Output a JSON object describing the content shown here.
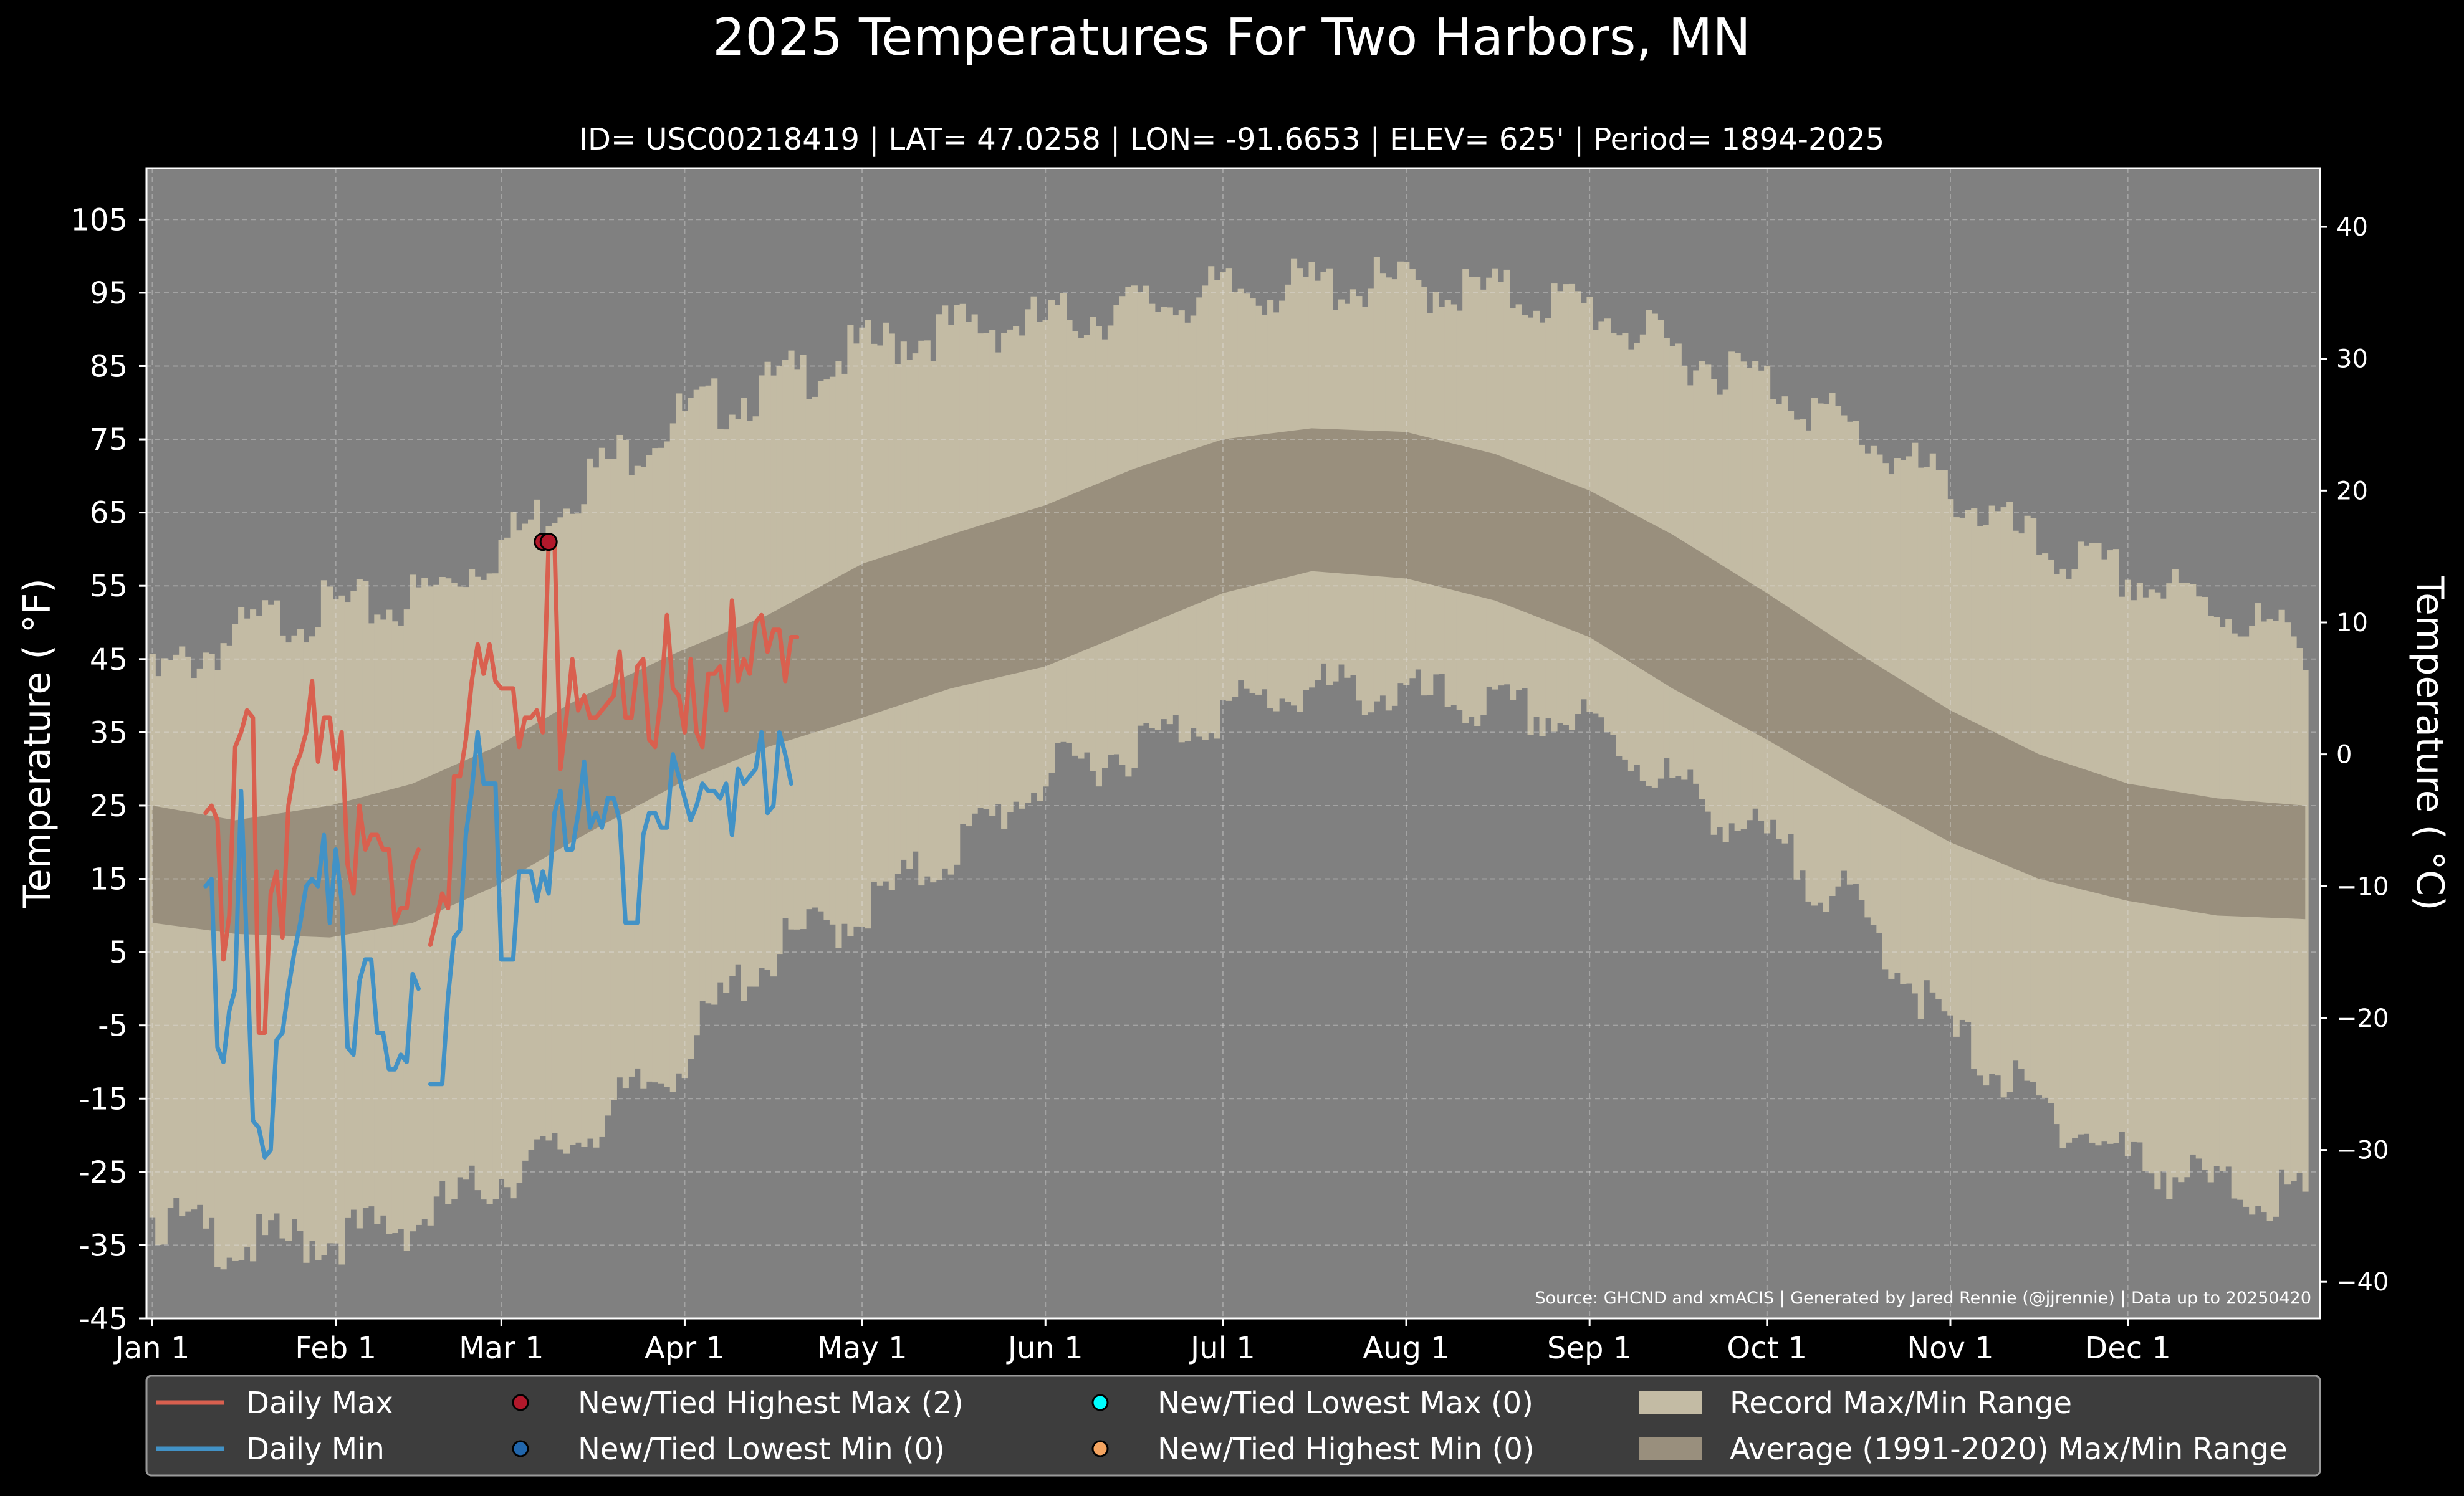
{
  "chart_data": {
    "type": "line",
    "title": "2025 Temperatures For Two Harbors, MN",
    "subtitle": "ID= USC00218419 | LAT= 47.0258 | LON= -91.6653 | ELEV= 625' | Period= 1894-2025",
    "ylabel_left": "Temperature ( °F)",
    "ylabel_right": "Temperature ( °C)",
    "source": "Source: GHCND and xmACIS | Generated by Jared Rennie (@jjrennie) | Data up to 20250420",
    "ylim_f": [
      -45,
      112
    ],
    "y_ticks_f": [
      "105",
      "95",
      "85",
      "75",
      "65",
      "55",
      "45",
      "35",
      "25",
      "15",
      "5",
      "-5",
      "-15",
      "-25",
      "-35",
      "-45"
    ],
    "y_ticks_c": [
      "40",
      "30",
      "20",
      "10",
      "0",
      "−10",
      "−20",
      "−30",
      "−40"
    ],
    "x_ticks": [
      "Jan 1",
      "Feb 1",
      "Mar 1",
      "Apr 1",
      "May 1",
      "Jun 1",
      "Jul 1",
      "Aug 1",
      "Sep 1",
      "Oct 1",
      "Nov 1",
      "Dec 1"
    ],
    "grid": true,
    "colors": {
      "background": "#808080",
      "record_range": "#c3bba4",
      "average_range": "#998f7d",
      "daily_max": "#d9604f",
      "daily_min": "#4292c6",
      "highest_max_marker": "#b2182b",
      "lowest_min_marker": "#2166ac",
      "lowest_max_marker": "#00ffff",
      "highest_min_marker": "#f4a460"
    },
    "record_max_anchors": [
      [
        1,
        42
      ],
      [
        10,
        46
      ],
      [
        20,
        50
      ],
      [
        31,
        52
      ],
      [
        41,
        52
      ],
      [
        50,
        55
      ],
      [
        59,
        60
      ],
      [
        75,
        70
      ],
      [
        90,
        78
      ],
      [
        105,
        82
      ],
      [
        120,
        87
      ],
      [
        135,
        90
      ],
      [
        152,
        91
      ],
      [
        167,
        93
      ],
      [
        182,
        95
      ],
      [
        197,
        96
      ],
      [
        213,
        96
      ],
      [
        228,
        95
      ],
      [
        244,
        93
      ],
      [
        258,
        87
      ],
      [
        274,
        83
      ],
      [
        289,
        76
      ],
      [
        305,
        68
      ],
      [
        320,
        60
      ],
      [
        335,
        56
      ],
      [
        350,
        52
      ],
      [
        365,
        47
      ]
    ],
    "record_min_anchors": [
      [
        1,
        -31
      ],
      [
        15,
        -35
      ],
      [
        31,
        -34
      ],
      [
        45,
        -32
      ],
      [
        59,
        -26
      ],
      [
        70,
        -22
      ],
      [
        80,
        -16
      ],
      [
        90,
        -10
      ],
      [
        100,
        1
      ],
      [
        110,
        7
      ],
      [
        120,
        10
      ],
      [
        135,
        18
      ],
      [
        152,
        29
      ],
      [
        170,
        34
      ],
      [
        182,
        38
      ],
      [
        197,
        41
      ],
      [
        213,
        40
      ],
      [
        230,
        38
      ],
      [
        244,
        36
      ],
      [
        258,
        28
      ],
      [
        274,
        20
      ],
      [
        289,
        11
      ],
      [
        305,
        -6
      ],
      [
        320,
        -16
      ],
      [
        335,
        -23
      ],
      [
        350,
        -27
      ],
      [
        365,
        -29
      ]
    ],
    "avg_max_anchors": [
      [
        1,
        25
      ],
      [
        15,
        23
      ],
      [
        31,
        25
      ],
      [
        45,
        28
      ],
      [
        59,
        33
      ],
      [
        74,
        40
      ],
      [
        90,
        46
      ],
      [
        105,
        51
      ],
      [
        121,
        58
      ],
      [
        136,
        62
      ],
      [
        152,
        66
      ],
      [
        167,
        71
      ],
      [
        182,
        75
      ],
      [
        197,
        76.5
      ],
      [
        213,
        76
      ],
      [
        228,
        73
      ],
      [
        244,
        68
      ],
      [
        258,
        62
      ],
      [
        274,
        54
      ],
      [
        289,
        46
      ],
      [
        305,
        38
      ],
      [
        320,
        32
      ],
      [
        335,
        28
      ],
      [
        350,
        26
      ],
      [
        365,
        25
      ]
    ],
    "avg_min_anchors": [
      [
        1,
        9
      ],
      [
        15,
        7.5
      ],
      [
        31,
        7
      ],
      [
        45,
        9
      ],
      [
        59,
        14
      ],
      [
        74,
        21
      ],
      [
        90,
        28
      ],
      [
        105,
        33
      ],
      [
        121,
        37
      ],
      [
        136,
        41
      ],
      [
        152,
        44
      ],
      [
        167,
        49
      ],
      [
        182,
        54
      ],
      [
        197,
        57
      ],
      [
        213,
        56
      ],
      [
        228,
        53
      ],
      [
        244,
        48
      ],
      [
        258,
        41
      ],
      [
        274,
        34
      ],
      [
        289,
        27
      ],
      [
        305,
        20
      ],
      [
        320,
        15
      ],
      [
        335,
        12
      ],
      [
        350,
        10
      ],
      [
        365,
        9.5
      ]
    ],
    "series": [
      {
        "name": "Daily Max",
        "x": [
          10,
          11,
          12,
          13,
          14,
          15,
          16,
          17,
          18,
          19,
          20,
          21,
          22,
          23,
          24,
          25,
          26,
          27,
          28,
          29,
          30,
          31,
          32,
          33,
          34,
          35,
          36,
          37,
          38,
          39,
          40,
          41,
          42,
          43,
          44,
          45,
          46,
          47,
          48,
          50,
          51,
          52,
          53,
          54,
          55,
          56,
          57,
          58,
          59,
          60,
          62,
          63,
          64,
          65,
          66,
          67,
          68,
          69,
          70,
          71,
          72,
          73,
          74,
          75,
          76,
          77,
          78,
          79,
          80,
          81,
          82,
          83,
          84,
          85,
          86,
          87,
          88,
          89,
          90,
          91,
          92,
          93,
          94,
          95,
          96,
          97,
          98,
          99,
          100,
          101,
          102,
          103,
          104,
          105,
          106,
          107,
          108,
          109,
          110
        ],
        "values": [
          24,
          25,
          23,
          4,
          10,
          33,
          35,
          38,
          37,
          -6,
          -6,
          13,
          16,
          7,
          25,
          30,
          32,
          35,
          42,
          31,
          37,
          37,
          30,
          35,
          17,
          13,
          25,
          19,
          21,
          21,
          19,
          19,
          9,
          11,
          11,
          17,
          19,
          null,
          6,
          13,
          11,
          29,
          29,
          34,
          42,
          47,
          43,
          47,
          42,
          41,
          41,
          33,
          37,
          37,
          38,
          35,
          61,
          61,
          30,
          37,
          45,
          38,
          40,
          37,
          37,
          38,
          39,
          40,
          46,
          37,
          37,
          44,
          45,
          34,
          33,
          40,
          51,
          41,
          40,
          35,
          45,
          35,
          33,
          43,
          43,
          44,
          38,
          53,
          42,
          45,
          43,
          50,
          51,
          46,
          49,
          49,
          42,
          48,
          48
        ]
      },
      {
        "name": "Daily Min",
        "x": [
          10,
          11,
          12,
          13,
          14,
          15,
          16,
          17,
          18,
          19,
          20,
          21,
          22,
          23,
          24,
          25,
          26,
          27,
          28,
          29,
          30,
          31,
          32,
          33,
          34,
          35,
          36,
          37,
          38,
          39,
          40,
          41,
          42,
          43,
          44,
          45,
          46,
          47,
          48,
          50,
          51,
          52,
          53,
          54,
          55,
          56,
          57,
          58,
          59,
          60,
          62,
          63,
          64,
          65,
          66,
          67,
          68,
          69,
          70,
          71,
          72,
          73,
          74,
          75,
          76,
          77,
          78,
          79,
          80,
          81,
          82,
          83,
          84,
          85,
          86,
          87,
          88,
          89,
          90,
          91,
          92,
          93,
          94,
          95,
          96,
          97,
          98,
          99,
          100,
          101,
          102,
          103,
          104,
          105,
          106,
          107,
          108,
          109,
          110
        ],
        "values": [
          14,
          15,
          -8,
          -10,
          -3,
          0,
          27,
          5,
          -18,
          -19,
          -23,
          -22,
          -7,
          -6,
          0,
          5,
          9,
          14,
          15,
          14,
          21,
          9,
          19,
          12,
          -8,
          -9,
          1,
          4,
          4,
          -6,
          -6,
          -11,
          -11,
          -9,
          -10,
          2,
          0,
          null,
          -13,
          -13,
          -1,
          7,
          8,
          21,
          27,
          35,
          28,
          28,
          28,
          4,
          4,
          16,
          16,
          16,
          12,
          16,
          13,
          24,
          27,
          19,
          19,
          24,
          31,
          22,
          24,
          22,
          26,
          26,
          23,
          9,
          9,
          9,
          21,
          24,
          24,
          22,
          22,
          32,
          29,
          26,
          23,
          25,
          28,
          27,
          27,
          26,
          28,
          21,
          30,
          28,
          29,
          30,
          35,
          24,
          25,
          35,
          32,
          28,
          null
        ]
      }
    ],
    "new_highest_max": [
      [
        67,
        61
      ],
      [
        68,
        61
      ]
    ],
    "legend": {
      "items": [
        {
          "label": "Daily Max",
          "kind": "line",
          "color": "#d9604f"
        },
        {
          "label": "New/Tied Highest Max (2)",
          "kind": "dot",
          "color": "#b2182b"
        },
        {
          "label": "New/Tied Lowest Max (0)",
          "kind": "dot",
          "color": "#00ffff"
        },
        {
          "label": "Record Max/Min Range",
          "kind": "patch",
          "color": "#c3bba4"
        },
        {
          "label": "Daily Min",
          "kind": "line",
          "color": "#4292c6"
        },
        {
          "label": "New/Tied Lowest Min (0)",
          "kind": "dot",
          "color": "#2166ac"
        },
        {
          "label": "New/Tied Highest Min (0)",
          "kind": "dot",
          "color": "#f4a460"
        },
        {
          "label": "Average (1991-2020) Max/Min Range",
          "kind": "patch",
          "color": "#998f7d"
        }
      ]
    }
  }
}
